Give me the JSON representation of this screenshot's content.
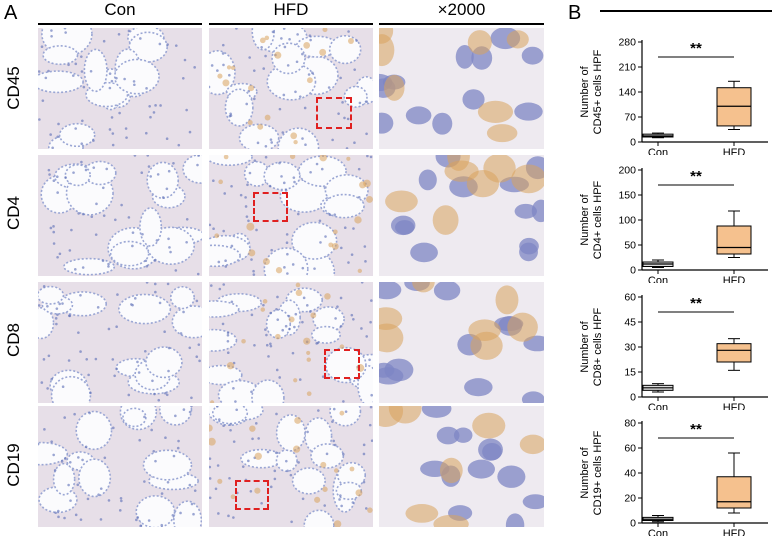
{
  "panel_a": {
    "letter": "A",
    "columns": [
      "Con",
      "HFD",
      "×2000"
    ],
    "rows": [
      "CD45",
      "CD4",
      "CD8",
      "CD19"
    ]
  },
  "panel_b": {
    "letter": "B"
  },
  "colors": {
    "box_fill": "#f5c18e",
    "box_con_fill": "#dcdcdc",
    "zoom_box": "#e02020",
    "tissue_bg": "#f4f0ee",
    "nucleus": "#5a6cb5",
    "stain": "#d9a35c"
  },
  "chart_data": [
    {
      "type": "box",
      "categories": [
        "Con",
        "HFD"
      ],
      "ylabel": "Number of CD45+ cells HPF",
      "ylim": [
        0,
        280
      ],
      "yticks": [
        0,
        70,
        140,
        210,
        280
      ],
      "significance": "**",
      "series": [
        {
          "category": "Con",
          "min": 12,
          "q1": 14,
          "median": 17,
          "q3": 22,
          "max": 25
        },
        {
          "category": "HFD",
          "min": 35,
          "q1": 45,
          "median": 100,
          "q3": 152,
          "max": 170
        }
      ]
    },
    {
      "type": "box",
      "categories": [
        "Con",
        "HFD"
      ],
      "ylabel": "Number of CD4+ cells HPF",
      "ylim": [
        0,
        200
      ],
      "yticks": [
        0,
        50,
        100,
        150,
        200
      ],
      "significance": "**",
      "series": [
        {
          "category": "Con",
          "min": 5,
          "q1": 7,
          "median": 12,
          "q3": 16,
          "max": 20
        },
        {
          "category": "HFD",
          "min": 25,
          "q1": 32,
          "median": 45,
          "q3": 88,
          "max": 118
        }
      ]
    },
    {
      "type": "box",
      "categories": [
        "Con",
        "HFD"
      ],
      "ylabel": "Number of CD8+ cells HPF",
      "ylim": [
        0,
        60
      ],
      "yticks": [
        0,
        15,
        30,
        45,
        60
      ],
      "significance": "**",
      "series": [
        {
          "category": "Con",
          "min": 3,
          "q1": 4,
          "median": 5.5,
          "q3": 7,
          "max": 8
        },
        {
          "category": "HFD",
          "min": 16,
          "q1": 21,
          "median": 28,
          "q3": 32,
          "max": 35
        }
      ]
    },
    {
      "type": "box",
      "categories": [
        "Con",
        "HFD"
      ],
      "ylabel": "Number of CD19+ cells HPF",
      "ylim": [
        0,
        80
      ],
      "yticks": [
        0,
        20,
        40,
        60,
        80
      ],
      "significance": "**",
      "series": [
        {
          "category": "Con",
          "min": 1,
          "q1": 2,
          "median": 3,
          "q3": 4.5,
          "max": 6
        },
        {
          "category": "HFD",
          "min": 8,
          "q1": 12,
          "median": 17,
          "q3": 37,
          "max": 56
        }
      ]
    }
  ]
}
